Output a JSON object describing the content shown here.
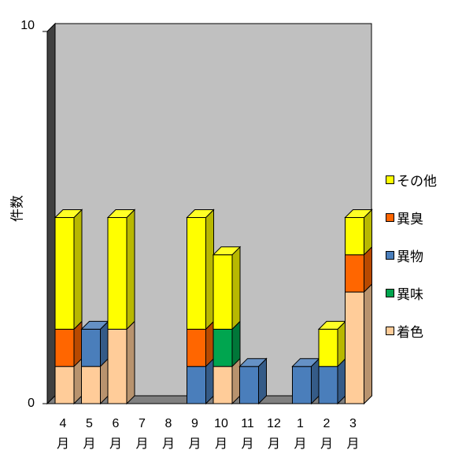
{
  "chart_data": {
    "type": "bar",
    "stacked": true,
    "three_d": true,
    "title": "",
    "xlabel": "",
    "ylabel": "件数",
    "ylim": [
      0,
      10
    ],
    "yticks": [
      "0",
      "10"
    ],
    "categories": [
      {
        "top": "4",
        "bottom": "月"
      },
      {
        "top": "5",
        "bottom": "月"
      },
      {
        "top": "6",
        "bottom": "月"
      },
      {
        "top": "7",
        "bottom": "月"
      },
      {
        "top": "8",
        "bottom": "月"
      },
      {
        "top": "9",
        "bottom": "月"
      },
      {
        "top": "10",
        "bottom": "月"
      },
      {
        "top": "11",
        "bottom": "月"
      },
      {
        "top": "12",
        "bottom": "月"
      },
      {
        "top": "1",
        "bottom": "月"
      },
      {
        "top": "2",
        "bottom": "月"
      },
      {
        "top": "3",
        "bottom": "月"
      }
    ],
    "series": [
      {
        "name": "着色",
        "color": "#FFCC99",
        "values": [
          1,
          1,
          2,
          0,
          0,
          0,
          1,
          0,
          0,
          0,
          0,
          3
        ]
      },
      {
        "name": "異味",
        "color": "#00A54F",
        "values": [
          0,
          0,
          0,
          0,
          0,
          0,
          1,
          0,
          0,
          0,
          0,
          0
        ]
      },
      {
        "name": "異物",
        "color": "#4A7EBB",
        "values": [
          0,
          1,
          0,
          0,
          0,
          1,
          0,
          1,
          0,
          1,
          1,
          0
        ]
      },
      {
        "name": "異臭",
        "color": "#FF6600",
        "values": [
          1,
          0,
          0,
          0,
          0,
          1,
          0,
          0,
          0,
          0,
          0,
          1
        ]
      },
      {
        "name": "その他",
        "color": "#FFFF00",
        "values": [
          3,
          0,
          3,
          0,
          0,
          3,
          2,
          0,
          0,
          0,
          1,
          1
        ]
      }
    ],
    "legend_position": "right",
    "legend_order": [
      "その他",
      "異臭",
      "異物",
      "異味",
      "着色"
    ],
    "grid": false,
    "plot_background": "#C0C0C0",
    "floor_color": "#808080"
  }
}
